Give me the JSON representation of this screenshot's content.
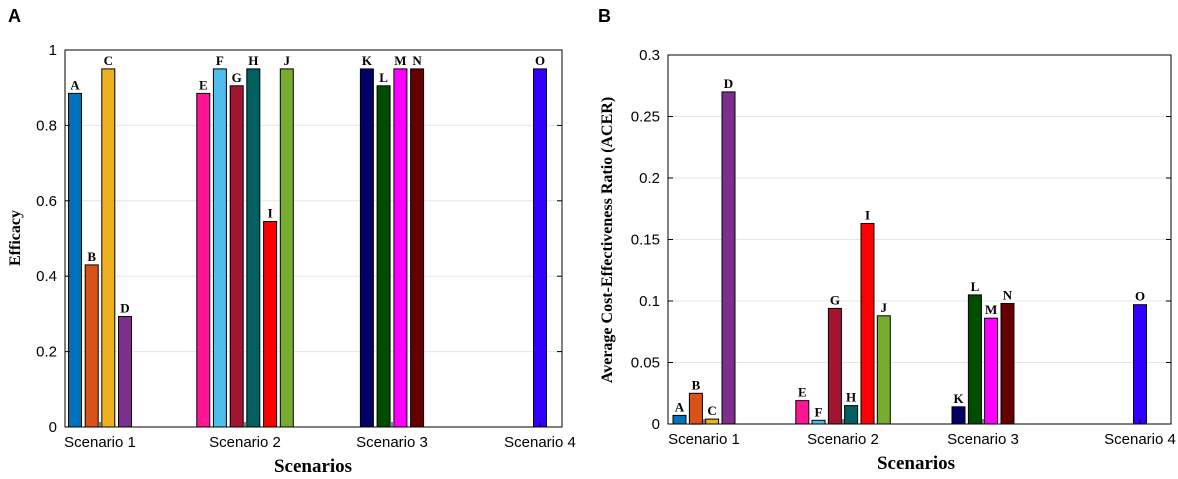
{
  "colors": {
    "A": "#0072BD",
    "B": "#D95319",
    "C": "#EDB120",
    "D": "#7E2F8E",
    "E": "#FF1493",
    "F": "#4DBEEE",
    "G": "#A2142F",
    "H": "#006060",
    "I": "#FF0000",
    "J": "#77AC30",
    "K": "#000066",
    "L": "#004D00",
    "M": "#FF00FF",
    "N": "#660000",
    "O": "#3300FF"
  },
  "chart_data": [
    {
      "type": "bar",
      "panel": "A",
      "title": "",
      "xlabel": "Scenarios",
      "ylabel": "Efficacy",
      "ylim": [
        0,
        1
      ],
      "yticks": [
        "0",
        "0.2",
        "0.4",
        "0.6",
        "0.8",
        "1"
      ],
      "categories": [
        "Scenario 1",
        "Scenario 2",
        "Scenario 3",
        "Scenario 4"
      ],
      "grid": true,
      "groups": [
        {
          "category": "Scenario 1",
          "bars": [
            {
              "label": "A",
              "value": 0.885
            },
            {
              "label": "B",
              "value": 0.43
            },
            {
              "label": "C",
              "value": 0.95
            },
            {
              "label": "D",
              "value": 0.293
            }
          ]
        },
        {
          "category": "Scenario 2",
          "bars": [
            {
              "label": "E",
              "value": 0.885
            },
            {
              "label": "F",
              "value": 0.95
            },
            {
              "label": "G",
              "value": 0.905
            },
            {
              "label": "H",
              "value": 0.95
            },
            {
              "label": "I",
              "value": 0.545
            },
            {
              "label": "J",
              "value": 0.95
            }
          ]
        },
        {
          "category": "Scenario 3",
          "bars": [
            {
              "label": "K",
              "value": 0.95
            },
            {
              "label": "L",
              "value": 0.905
            },
            {
              "label": "M",
              "value": 0.95
            },
            {
              "label": "N",
              "value": 0.95
            }
          ]
        },
        {
          "category": "Scenario 4",
          "bars": [
            {
              "label": "O",
              "value": 0.95
            }
          ]
        }
      ]
    },
    {
      "type": "bar",
      "panel": "B",
      "title": "",
      "xlabel": "Scenarios",
      "ylabel": "Average Cost-Effectiveness Ratio (ACER)",
      "ylim": [
        0,
        0.3
      ],
      "yticks": [
        "0",
        "0.05",
        "0.1",
        "0.15",
        "0.2",
        "0.25",
        "0.3"
      ],
      "categories": [
        "Scenario 1",
        "Scenario 2",
        "Scenario 3",
        "Scenario 4"
      ],
      "grid": true,
      "groups": [
        {
          "category": "Scenario 1",
          "bars": [
            {
              "label": "A",
              "value": 0.007
            },
            {
              "label": "B",
              "value": 0.025
            },
            {
              "label": "C",
              "value": 0.004
            },
            {
              "label": "D",
              "value": 0.27
            }
          ]
        },
        {
          "category": "Scenario 2",
          "bars": [
            {
              "label": "E",
              "value": 0.019
            },
            {
              "label": "F",
              "value": 0.003
            },
            {
              "label": "G",
              "value": 0.094
            },
            {
              "label": "H",
              "value": 0.015
            },
            {
              "label": "I",
              "value": 0.163
            },
            {
              "label": "J",
              "value": 0.088
            }
          ]
        },
        {
          "category": "Scenario 3",
          "bars": [
            {
              "label": "K",
              "value": 0.014
            },
            {
              "label": "L",
              "value": 0.105
            },
            {
              "label": "M",
              "value": 0.086
            },
            {
              "label": "N",
              "value": 0.098
            }
          ]
        },
        {
          "category": "Scenario 4",
          "bars": [
            {
              "label": "O",
              "value": 0.097
            }
          ]
        }
      ]
    }
  ]
}
